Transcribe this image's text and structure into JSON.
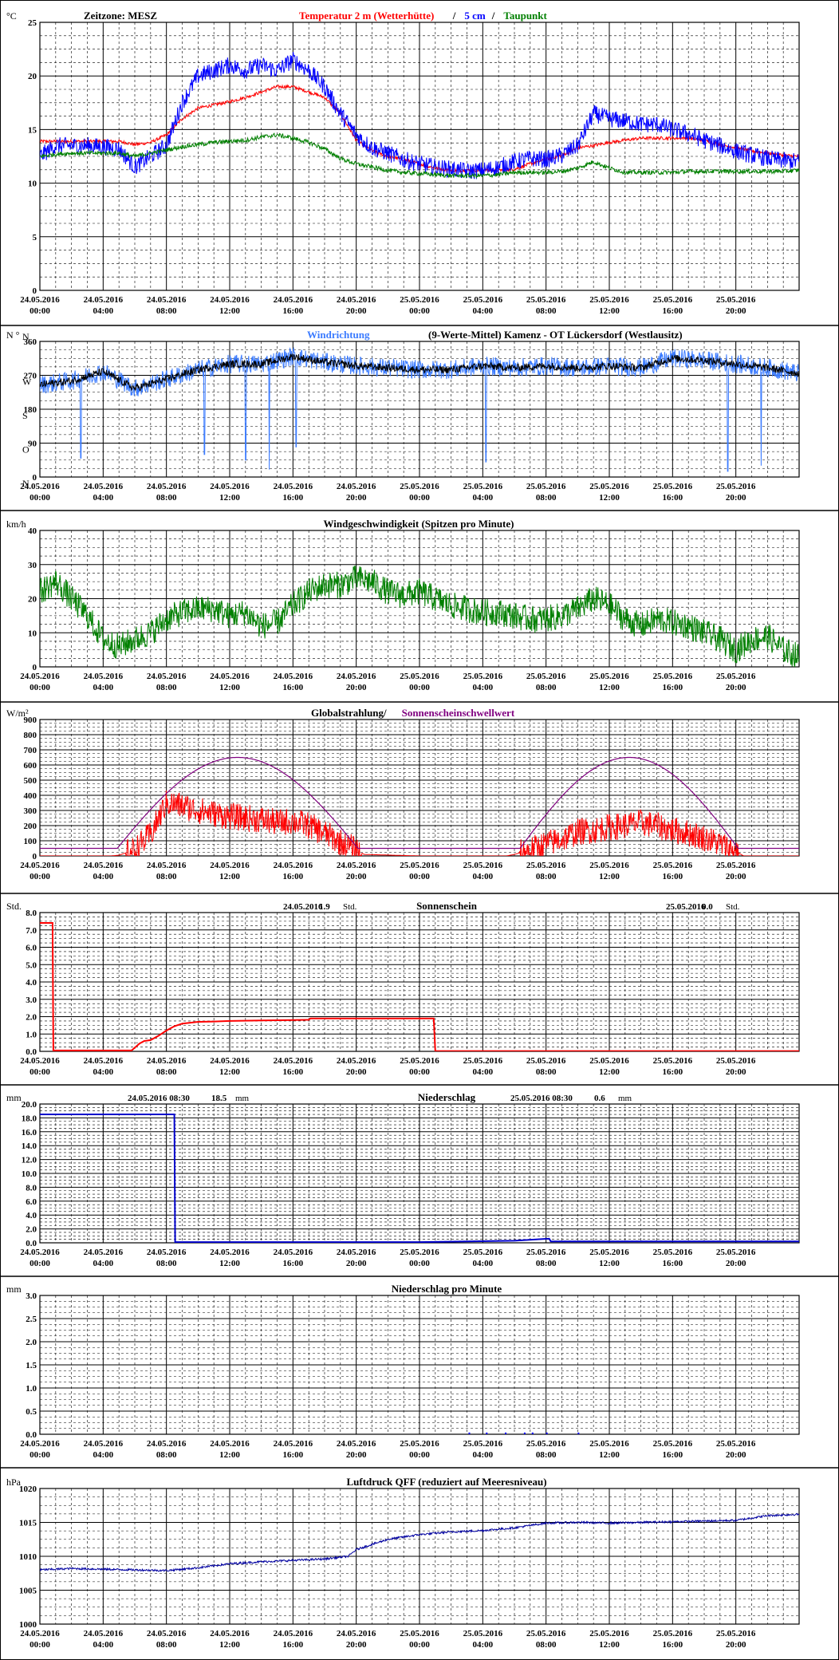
{
  "x_ticks": [
    {
      "date": "24.05.2016",
      "time": "00:00"
    },
    {
      "date": "24.05.2016",
      "time": "04:00"
    },
    {
      "date": "24.05.2016",
      "time": "08:00"
    },
    {
      "date": "24.05.2016",
      "time": "12:00"
    },
    {
      "date": "24.05.2016",
      "time": "16:00"
    },
    {
      "date": "24.05.2016",
      "time": "20:00"
    },
    {
      "date": "25.05.2016",
      "time": "00:00"
    },
    {
      "date": "25.05.2016",
      "time": "04:00"
    },
    {
      "date": "25.05.2016",
      "time": "08:00"
    },
    {
      "date": "25.05.2016",
      "time": "12:00"
    },
    {
      "date": "25.05.2016",
      "time": "16:00"
    },
    {
      "date": "25.05.2016",
      "time": "20:00"
    }
  ],
  "colors": {
    "red": "#ff0000",
    "blue": "#0000ff",
    "green": "#008000",
    "lightblue": "#3b7bff",
    "black": "#000000",
    "purple": "#800080",
    "darkblue": "#0000cc",
    "navy": "#0000a0",
    "grid": "#000000"
  },
  "chart_data": [
    {
      "type": "line",
      "unit": "°C",
      "zone_label": "Zeitzone: MESZ",
      "title_parts": [
        {
          "text": "Temperatur 2 m (Wetterhütte)",
          "color": "red"
        },
        {
          "text": "/",
          "color": "black"
        },
        {
          "text": "5 cm",
          "color": "blue"
        },
        {
          "text": "/",
          "color": "black"
        },
        {
          "text": "Taupunkt",
          "color": "green"
        }
      ],
      "ylim": [
        0,
        25
      ],
      "yticks": [
        0,
        5,
        10,
        15,
        20,
        25
      ],
      "x_hours": [
        0,
        1,
        2,
        3,
        4,
        5,
        6,
        7,
        8,
        9,
        10,
        11,
        12,
        13,
        14,
        15,
        16,
        17,
        18,
        19,
        20,
        21,
        22,
        23,
        24,
        25,
        26,
        27,
        28,
        29,
        30,
        31,
        32,
        33,
        34,
        35,
        36,
        37,
        38,
        39,
        40,
        41,
        42,
        43,
        44,
        45,
        46,
        47,
        48
      ],
      "series": [
        {
          "name": "Temperatur 2 m (Wetterhütte)",
          "color": "red",
          "noise": 0.15,
          "values": [
            13.9,
            13.9,
            13.9,
            13.9,
            13.9,
            13.9,
            13.6,
            13.8,
            14.5,
            16,
            17,
            17.3,
            17.6,
            18,
            18.5,
            19,
            19,
            18.5,
            18,
            16.5,
            14,
            13,
            12.5,
            12.2,
            11.8,
            11.4,
            11.2,
            11.2,
            11.2,
            11.2,
            11.3,
            11.8,
            12.2,
            12.6,
            13.3,
            13.5,
            13.8,
            14,
            14.2,
            14.2,
            14.2,
            14.2,
            14,
            13.6,
            13.3,
            13,
            12.8,
            12.6,
            12.5
          ]
        },
        {
          "name": "5 cm",
          "color": "blue",
          "noise": 0.8,
          "values": [
            12.5,
            13.5,
            13.5,
            13.5,
            13.4,
            13.2,
            11.5,
            12.5,
            13.5,
            17.5,
            20,
            20.5,
            21,
            20.5,
            21,
            20.5,
            21.5,
            20.5,
            19,
            16.5,
            14.5,
            13.3,
            12.8,
            12.2,
            11.8,
            11.5,
            11.3,
            11.1,
            11.2,
            11.5,
            12,
            12.3,
            12.2,
            12.6,
            13.5,
            16.5,
            16,
            15.8,
            15.5,
            15.5,
            15,
            14.6,
            14,
            13.5,
            13,
            12.6,
            12.3,
            12.1,
            12
          ]
        },
        {
          "name": "Taupunkt",
          "color": "green",
          "noise": 0.2,
          "values": [
            12.5,
            12.7,
            12.8,
            12.8,
            12.8,
            12.8,
            12.5,
            12.8,
            13.1,
            13.4,
            13.6,
            13.8,
            13.9,
            14,
            14.3,
            14.5,
            14.2,
            13.8,
            13.2,
            12.3,
            11.8,
            11.5,
            11.2,
            11,
            10.9,
            10.8,
            10.7,
            10.7,
            10.7,
            10.8,
            11,
            11,
            11,
            11.1,
            11.4,
            12,
            11.4,
            11,
            11,
            11,
            11,
            11.1,
            11.1,
            11.1,
            11.1,
            11.1,
            11.1,
            11.1,
            11.2
          ]
        }
      ]
    },
    {
      "type": "line",
      "unit": "N °",
      "title_parts": [
        {
          "text": "Windrichtung",
          "color": "lightblue"
        },
        {
          "text": "(9-Werte-Mittel)",
          "color": "black"
        },
        {
          "text": "Kamenz - OT Lückersdorf (Westlausitz)",
          "color": "black"
        }
      ],
      "ylim": [
        0,
        360
      ],
      "yticks": [
        0,
        90,
        180,
        270,
        360
      ],
      "compass": [
        {
          "value": 360,
          "label": "N"
        },
        {
          "value": 270,
          "label": "W"
        },
        {
          "value": 180,
          "label": "S"
        },
        {
          "value": 90,
          "label": "O"
        },
        {
          "value": 0,
          "label": "N"
        }
      ],
      "x_hours": [
        0,
        2,
        4,
        6,
        8,
        10,
        12,
        14,
        16,
        18,
        20,
        22,
        24,
        26,
        28,
        30,
        32,
        34,
        36,
        38,
        40,
        42,
        44,
        46,
        48
      ],
      "series": [
        {
          "name": "Windrichtung",
          "color": "lightblue",
          "noise": 25,
          "values": [
            245,
            255,
            280,
            235,
            260,
            285,
            300,
            300,
            320,
            305,
            295,
            290,
            285,
            285,
            295,
            290,
            295,
            290,
            295,
            290,
            315,
            310,
            300,
            290,
            275
          ],
          "spikes": [
            [
              2.6,
              50
            ],
            [
              10.4,
              60
            ],
            [
              13,
              45
            ],
            [
              14.5,
              20
            ],
            [
              16.2,
              80
            ],
            [
              28.2,
              40
            ],
            [
              43.5,
              15
            ],
            [
              45.6,
              30
            ]
          ]
        },
        {
          "name": "9-Werte-Mittel",
          "color": "black",
          "noise": 10,
          "values": [
            245,
            255,
            280,
            235,
            260,
            285,
            300,
            300,
            320,
            305,
            295,
            290,
            285,
            285,
            295,
            290,
            295,
            290,
            295,
            290,
            315,
            310,
            300,
            290,
            275
          ]
        }
      ]
    },
    {
      "type": "line",
      "unit": "km/h",
      "title": "Windgeschwindigkeit (Spitzen pro Minute)",
      "ylim": [
        0,
        40
      ],
      "yticks": [
        0,
        10,
        20,
        30,
        40
      ],
      "x_hours": [
        0,
        1,
        2,
        3,
        4,
        5,
        6,
        7,
        8,
        9,
        10,
        11,
        12,
        13,
        14,
        15,
        16,
        17,
        18,
        19,
        20,
        21,
        22,
        23,
        24,
        25,
        26,
        27,
        28,
        29,
        30,
        31,
        32,
        33,
        34,
        35,
        36,
        37,
        38,
        39,
        40,
        41,
        42,
        43,
        44,
        45,
        46,
        47,
        48
      ],
      "series": [
        {
          "name": "Windgeschwindigkeit",
          "color": "green",
          "noise": 4,
          "values": [
            22,
            25,
            20,
            15,
            8,
            6,
            8,
            10,
            14,
            16,
            17,
            17,
            15,
            16,
            12,
            13,
            18,
            22,
            24,
            24,
            26,
            25,
            22,
            21,
            22,
            20,
            18,
            17,
            16,
            16,
            15,
            14,
            14,
            15,
            17,
            20,
            18,
            14,
            12,
            14,
            13,
            12,
            10,
            8,
            5,
            8,
            9,
            5,
            3
          ]
        }
      ]
    },
    {
      "type": "line",
      "unit": "W/m²",
      "title_parts": [
        {
          "text": "Globalstrahlung/",
          "color": "black"
        },
        {
          "text": "Sonnenscheinschwellwert",
          "color": "purple"
        }
      ],
      "ylim": [
        0,
        900
      ],
      "yticks": [
        0,
        100,
        200,
        300,
        400,
        500,
        600,
        700,
        800,
        900
      ],
      "x_hours": [
        0,
        4.5,
        5,
        6,
        7,
        8,
        9,
        10,
        11,
        12,
        13,
        14,
        15,
        16,
        17,
        18,
        19,
        20,
        20.5,
        24,
        25,
        29.5,
        30,
        31,
        32,
        33,
        34,
        35,
        36,
        37,
        38,
        39,
        40,
        41,
        42,
        43,
        44,
        44.5,
        48
      ],
      "series": [
        {
          "name": "Globalstrahlung",
          "color": "red",
          "noise": 90,
          "values": [
            0,
            0,
            5,
            40,
            140,
            350,
            330,
            300,
            280,
            260,
            250,
            240,
            220,
            230,
            200,
            150,
            90,
            40,
            10,
            0,
            0,
            0,
            10,
            40,
            80,
            110,
            160,
            170,
            190,
            200,
            220,
            200,
            170,
            150,
            120,
            80,
            30,
            0,
            0
          ]
        },
        {
          "name": "Sonnenscheinschwellwert",
          "color": "purple",
          "noise": 0,
          "shape": "threshold",
          "base": 50,
          "arcs": [
            {
              "start": 4.5,
              "end": 20.5,
              "peak": 650
            },
            {
              "start": 30,
              "end": 44.5,
              "peak": 650
            }
          ]
        }
      ]
    },
    {
      "type": "line",
      "unit": "Std.",
      "title": "Sonnenschein",
      "summaries": [
        {
          "date": "24.05.2016",
          "value": "1.9",
          "unit": "Std."
        },
        {
          "date": "25.05.2016",
          "value": "0.0",
          "unit": "Std."
        }
      ],
      "ylim": [
        0,
        8
      ],
      "yticks": [
        0,
        1,
        2,
        3,
        4,
        5,
        6,
        7,
        8
      ],
      "tick_format": "fixed1",
      "x_hours": [
        0,
        0.8,
        0.85,
        5.8,
        6.3,
        6.6,
        7,
        7.5,
        8,
        8.5,
        9,
        10,
        11,
        12,
        14,
        16,
        17,
        17.1,
        24.9,
        25,
        48
      ],
      "series": [
        {
          "name": "Sonnenschein",
          "color": "red",
          "noise": 0,
          "step": true,
          "values": [
            7.4,
            7.4,
            0.05,
            0.05,
            0.45,
            0.6,
            0.65,
            0.9,
            1.2,
            1.45,
            1.6,
            1.7,
            1.72,
            1.75,
            1.78,
            1.8,
            1.82,
            1.9,
            1.9,
            0.02,
            0.02
          ]
        }
      ]
    },
    {
      "type": "line",
      "unit": "mm",
      "title": "Niederschlag",
      "summaries": [
        {
          "date": "24.05.2016 08:30",
          "value": "18.5",
          "unit": "mm"
        },
        {
          "date": "25.05.2016 08:30",
          "value": "0.6",
          "unit": "mm"
        }
      ],
      "ylim": [
        0,
        20
      ],
      "yticks": [
        0,
        2,
        4,
        6,
        8,
        10,
        12,
        14,
        16,
        18,
        20
      ],
      "tick_format": "fixed1",
      "x_hours": [
        0,
        8.5,
        8.55,
        24,
        27,
        30,
        32.2,
        32.3,
        48
      ],
      "series": [
        {
          "name": "Niederschlag",
          "color": "darkblue",
          "noise": 0,
          "step": true,
          "values": [
            18.5,
            18.5,
            0.1,
            0.1,
            0.2,
            0.3,
            0.6,
            0.2,
            0.2
          ]
        }
      ]
    },
    {
      "type": "bar",
      "unit": "mm",
      "title": "Niederschlag pro Minute",
      "ylim": [
        0,
        3
      ],
      "yticks": [
        0,
        0.5,
        1,
        1.5,
        2,
        2.5,
        3
      ],
      "tick_format": "fixed1",
      "x_hours": [
        27.1,
        28.2,
        29.4,
        30.6,
        31.1,
        32.0,
        34.0
      ],
      "series": [
        {
          "name": "Niederschlag pro Minute",
          "color": "blue",
          "values": [
            0.02,
            0.02,
            0.02,
            0.02,
            0.02,
            0.02,
            0.02
          ]
        }
      ]
    },
    {
      "type": "line",
      "unit": "hPa",
      "title": "Luftdruck QFF (reduziert auf Meeresniveau)",
      "ylim": [
        1000,
        1020
      ],
      "yticks": [
        1000,
        1005,
        1010,
        1015,
        1020
      ],
      "x_hours": [
        0,
        2,
        4,
        6,
        8,
        10,
        12,
        14,
        16,
        18,
        19.5,
        20,
        22,
        24,
        26,
        28,
        30,
        32,
        34,
        36,
        38,
        40,
        42,
        44,
        46,
        48
      ],
      "series": [
        {
          "name": "Luftdruck QFF",
          "color": "navy",
          "noise": 0.15,
          "values": [
            1008,
            1008.2,
            1008.1,
            1008,
            1007.9,
            1008.3,
            1008.9,
            1009.2,
            1009.4,
            1009.6,
            1010,
            1011,
            1012.5,
            1013.2,
            1013.6,
            1013.8,
            1014.2,
            1014.9,
            1015,
            1014.9,
            1015,
            1015.1,
            1015.2,
            1015.3,
            1016,
            1016.2
          ]
        }
      ]
    }
  ]
}
